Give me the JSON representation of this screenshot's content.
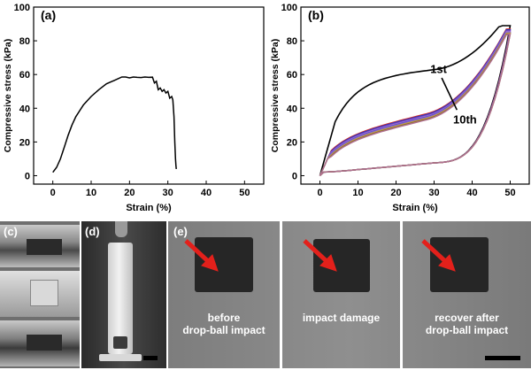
{
  "chart_data": [
    {
      "panel": "(a)",
      "type": "line",
      "xlabel": "Strain (%)",
      "ylabel": "Compressive stress (kPa)",
      "xlim": [
        -5,
        55
      ],
      "ylim": [
        -5,
        100
      ],
      "xticks": [
        "0",
        "10",
        "20",
        "30",
        "40",
        "50"
      ],
      "yticks": [
        "0",
        "20",
        "40",
        "60",
        "80",
        "100"
      ],
      "series": [
        {
          "color": "#000000",
          "x": [
            0,
            1,
            2,
            3,
            4,
            5,
            6,
            8,
            10,
            12,
            14,
            16,
            18,
            19,
            20,
            21,
            22,
            23,
            24,
            25,
            26,
            26.5,
            27,
            27.5,
            28,
            28.5,
            29,
            29.5,
            30,
            30.5,
            31,
            31.3,
            31.6,
            31.8,
            32,
            32.1,
            32.2
          ],
          "y": [
            2,
            5,
            10,
            17,
            24,
            30,
            35,
            42,
            47,
            51,
            54.5,
            56.5,
            58.5,
            58.5,
            58,
            58.5,
            58.3,
            58.2,
            58.5,
            58.3,
            58.4,
            55,
            56,
            51,
            52,
            50,
            51,
            49,
            50,
            46,
            47,
            45,
            35,
            20,
            10,
            6,
            4
          ]
        }
      ]
    },
    {
      "panel": "(b)",
      "type": "line",
      "xlabel": "Strain (%)",
      "ylabel": "Compressive stress (kPa)",
      "xlim": [
        -5,
        55
      ],
      "ylim": [
        -5,
        100
      ],
      "xticks": [
        "0",
        "10",
        "20",
        "30",
        "40",
        "50"
      ],
      "yticks": [
        "0",
        "20",
        "40",
        "60",
        "80",
        "100"
      ],
      "annotations": [
        {
          "text": "1st",
          "x": 29,
          "y": 61
        },
        {
          "text": "10th",
          "x": 35,
          "y": 31
        }
      ],
      "loops": [
        {
          "cycle": 1,
          "color": "#000000",
          "peak": 89
        },
        {
          "cycle": 2,
          "color": "#d62728",
          "peak": 87
        },
        {
          "cycle": 3,
          "color": "#1f3fbf",
          "peak": 86.5
        },
        {
          "cycle": 4,
          "color": "#7a3fbf",
          "peak": 86
        },
        {
          "cycle": 5,
          "color": "#a070d0",
          "peak": 85.5
        },
        {
          "cycle": 6,
          "color": "#5a4fcf",
          "peak": 85
        },
        {
          "cycle": 7,
          "color": "#9070c0",
          "peak": 85
        },
        {
          "cycle": 8,
          "color": "#c8a040",
          "peak": 84.5
        },
        {
          "cycle": 9,
          "color": "#8a6e2f",
          "peak": 84
        },
        {
          "cycle": 10,
          "color": "#b07090",
          "peak": 84
        }
      ]
    }
  ],
  "photos": {
    "c": {
      "label": "(c)"
    },
    "d": {
      "label": "(d)"
    },
    "e": {
      "label": "(e)",
      "captions": [
        [
          "before",
          "drop-ball impact"
        ],
        [
          "impact damage"
        ],
        [
          "recover after",
          "drop-ball impact"
        ]
      ]
    }
  }
}
